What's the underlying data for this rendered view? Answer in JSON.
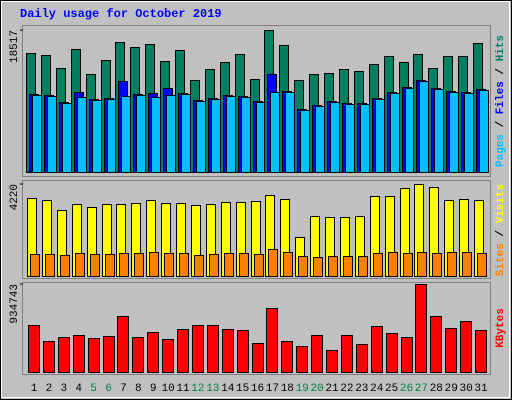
{
  "chart_data": [
    {
      "type": "bar",
      "title": "Daily usage for October 2019",
      "title_color": "#0000ff",
      "ylim": [
        0,
        18517
      ],
      "yticks": [
        18517
      ],
      "legend_separator": " / ",
      "series": [
        {
          "name": "Hits",
          "color": "#008060",
          "values": [
            15518,
            15257,
            13562,
            16040,
            12780,
            14605,
            16952,
            16300,
            16692,
            14475,
            15909,
            11997,
            13431,
            14344,
            15388,
            12128,
            18517,
            16561,
            11997,
            12780,
            12910,
            13431,
            13171,
            14083,
            15127,
            14344,
            15388,
            13562,
            15127,
            15127,
            16822
          ]
        },
        {
          "name": "Files",
          "color": "#0000ff",
          "values": [
            10171,
            10041,
            9128,
            10432,
            9519,
            9649,
            11867,
            10171,
            10302,
            10954,
            10302,
            9389,
            9649,
            10041,
            9911,
            9259,
            12780,
            10562,
            8215,
            8737,
            9259,
            8998,
            8998,
            9649,
            10432,
            11085,
            11997,
            10954,
            10562,
            10432,
            10824
          ]
        },
        {
          "name": "Pages",
          "color": "#00c0ff",
          "values": [
            10041,
            9911,
            8998,
            9780,
            9389,
            9519,
            9911,
            10041,
            9780,
            10041,
            10171,
            9259,
            9519,
            9911,
            9780,
            9128,
            10432,
            10432,
            8085,
            8607,
            9128,
            8867,
            8867,
            9519,
            10302,
            10954,
            11867,
            10824,
            10432,
            10302,
            10693
          ]
        }
      ]
    },
    {
      "type": "bar",
      "ylim": [
        0,
        4220
      ],
      "yticks": [
        4220
      ],
      "legend_separator": " / ",
      "series": [
        {
          "name": "Visits",
          "color": "#ffff00",
          "values": [
            3578,
            3486,
            3027,
            3303,
            3165,
            3303,
            3303,
            3349,
            3486,
            3349,
            3349,
            3257,
            3303,
            3394,
            3394,
            3440,
            3715,
            3532,
            1789,
            2752,
            2706,
            2706,
            2752,
            3670,
            3670,
            4037,
            4220,
            4082,
            3486,
            3532,
            3486
          ]
        },
        {
          "name": "Sites",
          "color": "#ff8000",
          "values": [
            1009,
            1009,
            963,
            1055,
            1009,
            1009,
            1055,
            1055,
            1101,
            1055,
            1055,
            963,
            1009,
            1055,
            1055,
            1009,
            1239,
            1101,
            917,
            872,
            917,
            917,
            917,
            1055,
            1101,
            1055,
            1101,
            1055,
            1101,
            1101,
            1055
          ]
        }
      ]
    },
    {
      "type": "bar",
      "ylim": [
        0,
        934743
      ],
      "yticks": [
        934743
      ],
      "categories": [
        "1",
        "2",
        "3",
        "4",
        "5",
        "6",
        "7",
        "8",
        "9",
        "10",
        "11",
        "12",
        "13",
        "14",
        "15",
        "16",
        "17",
        "18",
        "19",
        "20",
        "21",
        "22",
        "23",
        "24",
        "25",
        "26",
        "27",
        "28",
        "29",
        "30",
        "31"
      ],
      "category_colors": [
        "#000000",
        "#000000",
        "#000000",
        "#000000",
        "#008040",
        "#008040",
        "#000000",
        "#000000",
        "#000000",
        "#000000",
        "#000000",
        "#008040",
        "#008040",
        "#000000",
        "#000000",
        "#000000",
        "#000000",
        "#000000",
        "#008040",
        "#008040",
        "#000000",
        "#000000",
        "#000000",
        "#000000",
        "#000000",
        "#008040",
        "#008040",
        "#000000",
        "#000000",
        "#000000",
        "#000000"
      ],
      "series": [
        {
          "name": "KBytes",
          "color": "#ff0000",
          "values": [
            499234,
            329282,
            371770,
            393014,
            361148,
            382392,
            594832,
            371770,
            424880,
            350526,
            456746,
            499234,
            499234,
            456746,
            446124,
            308038,
            679808,
            329282,
            276172,
            393014,
            233684,
            393014,
            297416,
            488612,
            414258,
            371770,
            934743,
            594832,
            467368,
            541722,
            446124
          ]
        }
      ]
    }
  ]
}
